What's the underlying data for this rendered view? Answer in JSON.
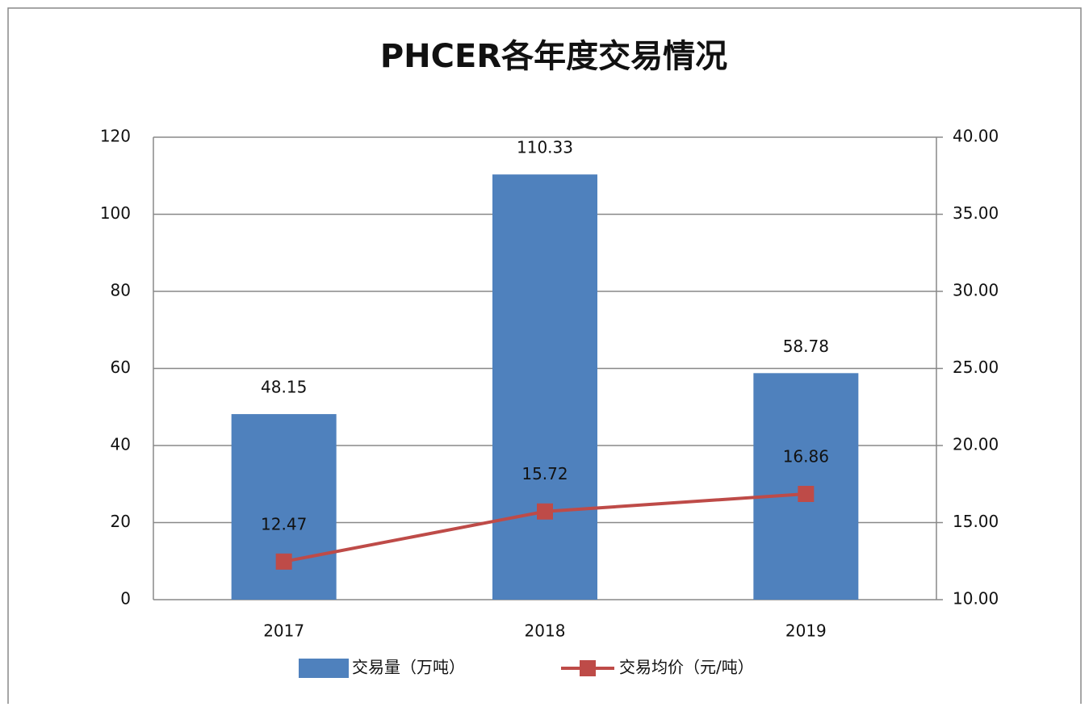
{
  "chart_data": {
    "type": "bar",
    "title": "PHCER各年度交易情况",
    "categories": [
      "2017",
      "2018",
      "2019"
    ],
    "series": [
      {
        "name": "交易量（万吨）",
        "color": "#4f81bd",
        "values": [
          48.15,
          110.33,
          58.78
        ]
      },
      {
        "name": "交易均价（元/吨）",
        "color": "#be4b48",
        "type": "line",
        "axis": "y2",
        "values": [
          12.47,
          15.72,
          16.86
        ]
      }
    ],
    "ylim": [
      0,
      120
    ],
    "yticks": [
      0,
      20,
      40,
      60,
      80,
      100,
      120
    ],
    "y2lim": [
      10,
      40
    ],
    "y2ticks": [
      {
        "value": 10,
        "label": "10.00"
      },
      {
        "value": 15,
        "label": "15.00"
      },
      {
        "value": 20,
        "label": "20.00"
      },
      {
        "value": 25,
        "label": "25.00"
      },
      {
        "value": 30,
        "label": "30.00"
      },
      {
        "value": 35,
        "label": "35.00"
      },
      {
        "value": 40,
        "label": "40.00"
      }
    ],
    "grid": true,
    "legend": "bottom"
  }
}
